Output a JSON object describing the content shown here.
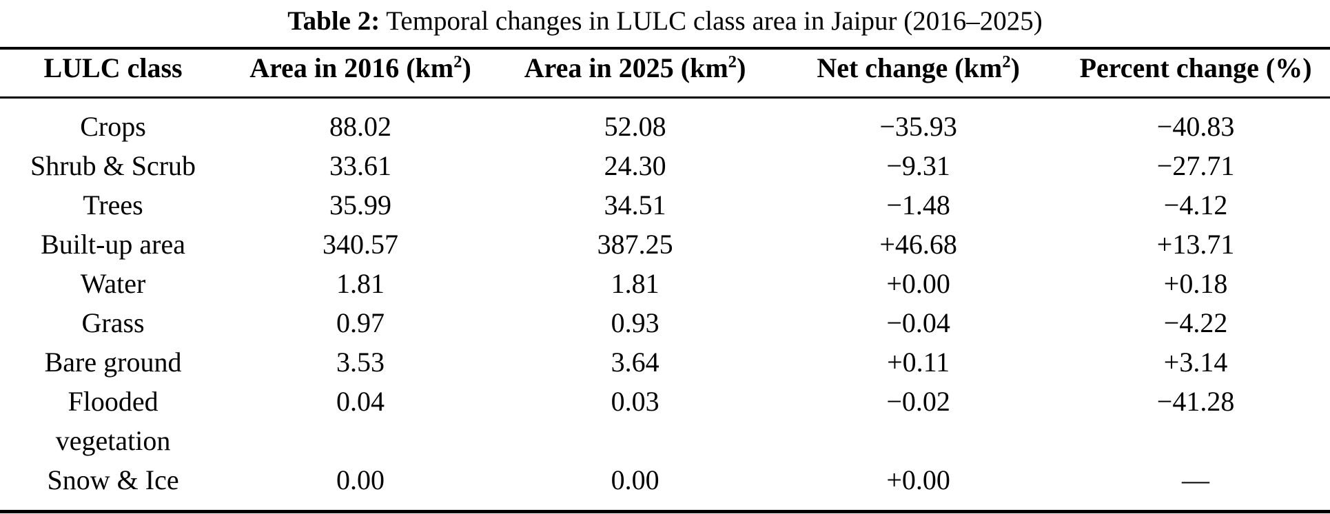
{
  "colors": {
    "background": "#ffffff",
    "text": "#000000",
    "rule": "#000000"
  },
  "caption": {
    "label": "Table 2:",
    "text": " Temporal changes in LULC class area in Jaipur (2016–2025)"
  },
  "table": {
    "columns": [
      {
        "pre": "LULC class",
        "sup": "",
        "post": ""
      },
      {
        "pre": "Area in 2016 (km",
        "sup": "2",
        "post": ")"
      },
      {
        "pre": "Area in 2025 (km",
        "sup": "2",
        "post": ")"
      },
      {
        "pre": "Net change (km",
        "sup": "2",
        "post": ")"
      },
      {
        "pre": "Percent change (%)",
        "sup": "",
        "post": ""
      }
    ],
    "rows": [
      {
        "lulc_class": "Crops",
        "area_2016": "88.02",
        "area_2025": "52.08",
        "net_change": "−35.93",
        "percent_change": "−40.83"
      },
      {
        "lulc_class": "Shrub & Scrub",
        "area_2016": "33.61",
        "area_2025": "24.30",
        "net_change": "−9.31",
        "percent_change": "−27.71"
      },
      {
        "lulc_class": "Trees",
        "area_2016": "35.99",
        "area_2025": "34.51",
        "net_change": "−1.48",
        "percent_change": "−4.12"
      },
      {
        "lulc_class": "Built-up area",
        "area_2016": "340.57",
        "area_2025": "387.25",
        "net_change": "+46.68",
        "percent_change": "+13.71"
      },
      {
        "lulc_class": "Water",
        "area_2016": "1.81",
        "area_2025": "1.81",
        "net_change": "+0.00",
        "percent_change": "+0.18"
      },
      {
        "lulc_class": "Grass",
        "area_2016": "0.97",
        "area_2025": "0.93",
        "net_change": "−0.04",
        "percent_change": "−4.22"
      },
      {
        "lulc_class": "Bare ground",
        "area_2016": "3.53",
        "area_2025": "3.64",
        "net_change": "+0.11",
        "percent_change": "+3.14"
      },
      {
        "lulc_class": "Flooded vegetation",
        "area_2016": "0.04",
        "area_2025": "0.03",
        "net_change": "−0.02",
        "percent_change": "−41.28"
      },
      {
        "lulc_class": "Snow & Ice",
        "area_2016": "0.00",
        "area_2025": "0.00",
        "net_change": "+0.00",
        "percent_change": "—"
      }
    ]
  }
}
